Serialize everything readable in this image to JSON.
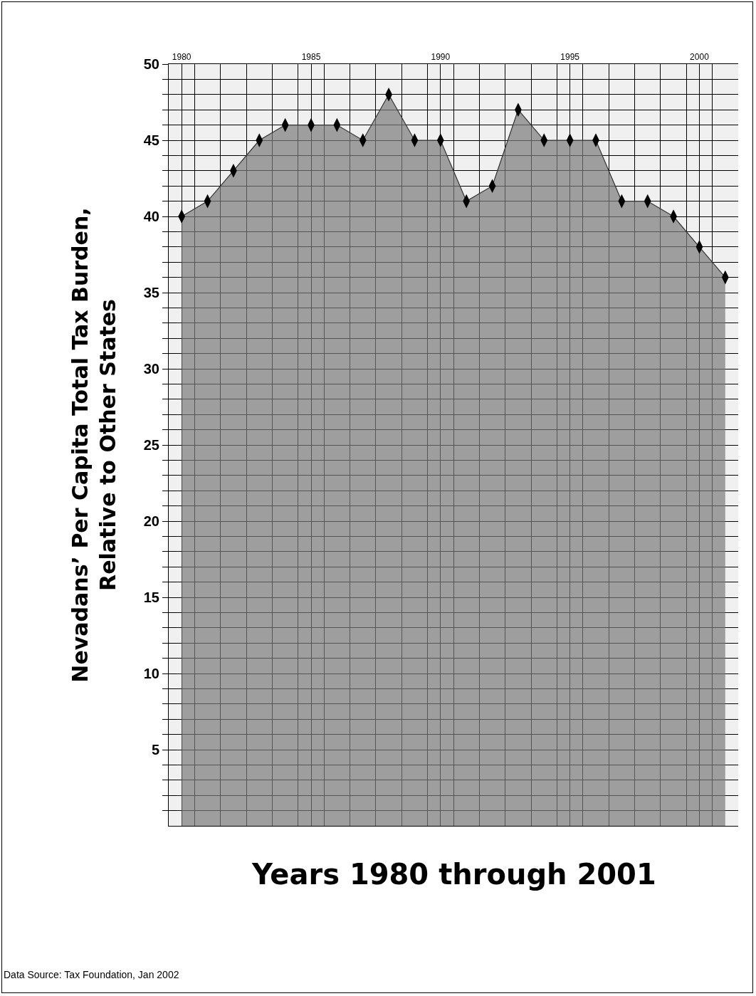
{
  "chart_data": {
    "type": "area",
    "xlabel": "Years 1980 through 2001",
    "ylabel": "Nevadans’ Per Capita Total Tax Burden,\nRelative to Other States",
    "annotations": [
      "Data Source: Tax Foundation, Jan 2002"
    ],
    "x": [
      1980,
      1981,
      1982,
      1983,
      1984,
      1985,
      1986,
      1987,
      1988,
      1989,
      1990,
      1991,
      1992,
      1993,
      1994,
      1995,
      1996,
      1997,
      1998,
      1999,
      2000,
      2001
    ],
    "series": [
      {
        "color": "#7a7a7a",
        "values": [
          40,
          41,
          43,
          45,
          46,
          46,
          46,
          45,
          48,
          45,
          45,
          41,
          42,
          47,
          45,
          45,
          45,
          41,
          41,
          40,
          38,
          36
        ]
      }
    ],
    "marker": "diamond",
    "grid": true,
    "xlim": [
      1979.5,
      2001.5
    ],
    "xticks": [
      1980,
      1985,
      1990,
      1995,
      2000,
      {
        "value": 1979.5,
        "label": null
      },
      {
        "value": 1980.5,
        "label": null
      },
      {
        "value": 1981.5,
        "label": null
      },
      {
        "value": 1982.5,
        "label": null
      },
      {
        "value": 1983.5,
        "label": null
      },
      {
        "value": 1984.5,
        "label": null
      },
      {
        "value": 1985.5,
        "label": null
      },
      {
        "value": 1986.5,
        "label": null
      },
      {
        "value": 1987.5,
        "label": null
      },
      {
        "value": 1988.5,
        "label": null
      },
      {
        "value": 1989.5,
        "label": null
      },
      {
        "value": 1990.5,
        "label": null
      },
      {
        "value": 1991.5,
        "label": null
      },
      {
        "value": 1992.5,
        "label": null
      },
      {
        "value": 1993.5,
        "label": null
      },
      {
        "value": 1994.5,
        "label": null
      },
      {
        "value": 1995.5,
        "label": null
      },
      {
        "value": 1996.5,
        "label": null
      },
      {
        "value": 1997.5,
        "label": null
      },
      {
        "value": 1998.5,
        "label": null
      },
      {
        "value": 1999.5,
        "label": null
      },
      {
        "value": 2000.5,
        "label": null
      }
    ],
    "ylim": [
      0,
      50
    ],
    "yticks": [
      5,
      10,
      15,
      20,
      25,
      30,
      35,
      40,
      45,
      50,
      {
        "value": 1,
        "label": null
      },
      {
        "value": 2,
        "label": null
      },
      {
        "value": 3,
        "label": null
      },
      {
        "value": 4,
        "label": null
      },
      {
        "value": 6,
        "label": null
      },
      {
        "value": 7,
        "label": null
      },
      {
        "value": 8,
        "label": null
      },
      {
        "value": 9,
        "label": null
      },
      {
        "value": 11,
        "label": null
      },
      {
        "value": 12,
        "label": null
      },
      {
        "value": 13,
        "label": null
      },
      {
        "value": 14,
        "label": null
      },
      {
        "value": 16,
        "label": null
      },
      {
        "value": 17,
        "label": null
      },
      {
        "value": 18,
        "label": null
      },
      {
        "value": 19,
        "label": null
      },
      {
        "value": 21,
        "label": null
      },
      {
        "value": 22,
        "label": null
      },
      {
        "value": 23,
        "label": null
      },
      {
        "value": 24,
        "label": null
      },
      {
        "value": 26,
        "label": null
      },
      {
        "value": 27,
        "label": null
      },
      {
        "value": 28,
        "label": null
      },
      {
        "value": 29,
        "label": null
      },
      {
        "value": 31,
        "label": null
      },
      {
        "value": 32,
        "label": null
      },
      {
        "value": 33,
        "label": null
      },
      {
        "value": 34,
        "label": null
      },
      {
        "value": 36,
        "label": null
      },
      {
        "value": 37,
        "label": null
      },
      {
        "value": 38,
        "label": null
      },
      {
        "value": 39,
        "label": null
      },
      {
        "value": 41,
        "label": null
      },
      {
        "value": 42,
        "label": null
      },
      {
        "value": 43,
        "label": null
      },
      {
        "value": 44,
        "label": null
      },
      {
        "value": 46,
        "label": null
      },
      {
        "value": 47,
        "label": null
      },
      {
        "value": 48,
        "label": null
      },
      {
        "value": 49,
        "label": null
      }
    ]
  }
}
